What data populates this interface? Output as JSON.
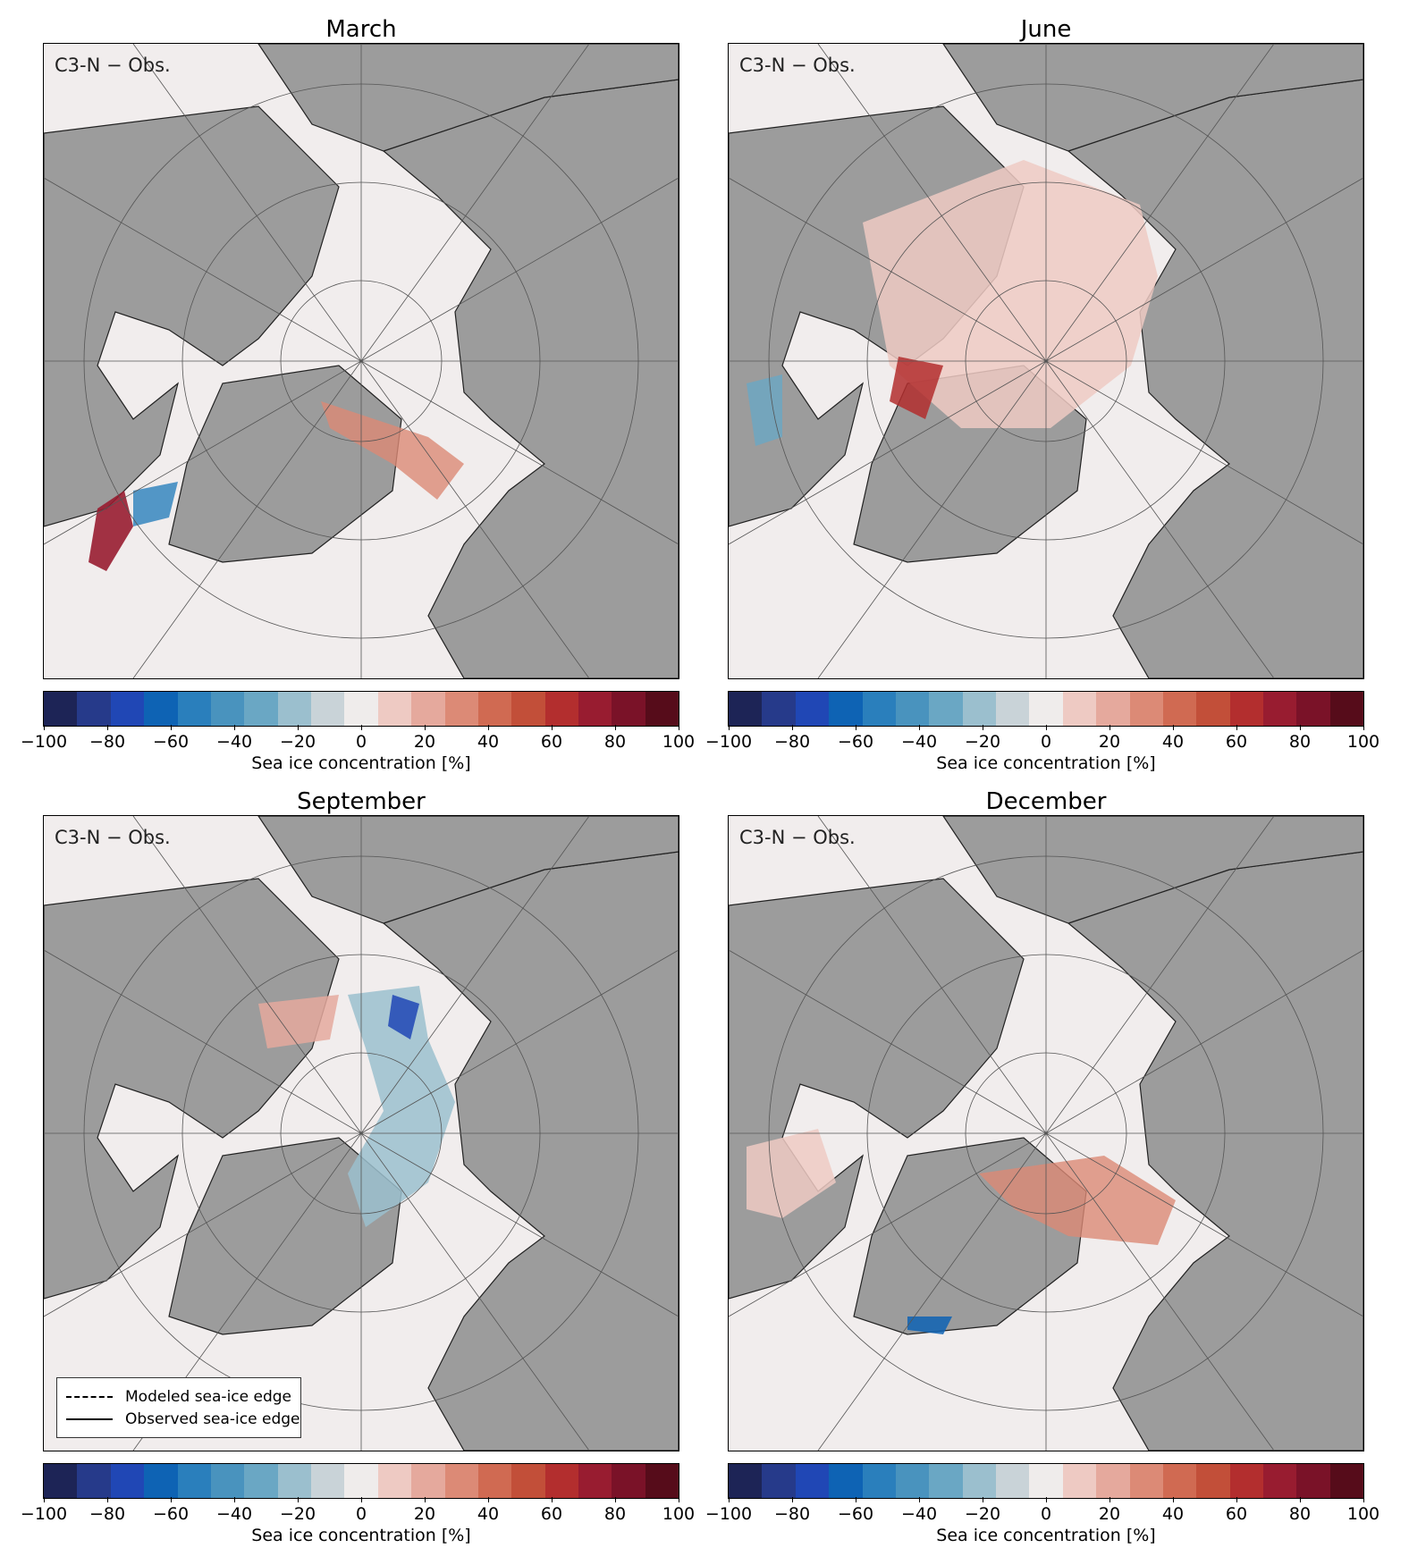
{
  "panels": [
    {
      "title": "March",
      "label": "C3-N − Obs."
    },
    {
      "title": "June",
      "label": "C3-N − Obs."
    },
    {
      "title": "September",
      "label": "C3-N − Obs."
    },
    {
      "title": "December",
      "label": "C3-N − Obs."
    }
  ],
  "legend": {
    "modeled": "Modeled sea-ice edge",
    "observed": "Observed sea-ice edge"
  },
  "colorbar": {
    "label": "Sea ice concentration [%]",
    "ticks": [
      "−100",
      "−80",
      "−60",
      "−40",
      "−20",
      "0",
      "20",
      "40",
      "60",
      "80",
      "100"
    ],
    "colors": [
      "#1d2456",
      "#263a8a",
      "#2047b5",
      "#0e63b4",
      "#2a7fbc",
      "#4993be",
      "#6aa7c4",
      "#9bbfce",
      "#c9d3d8",
      "#efeceb",
      "#eecac3",
      "#e5a99d",
      "#dc8a76",
      "#d06a52",
      "#c24f39",
      "#b32e2e",
      "#981c30",
      "#7a1228",
      "#560c1a"
    ]
  }
}
